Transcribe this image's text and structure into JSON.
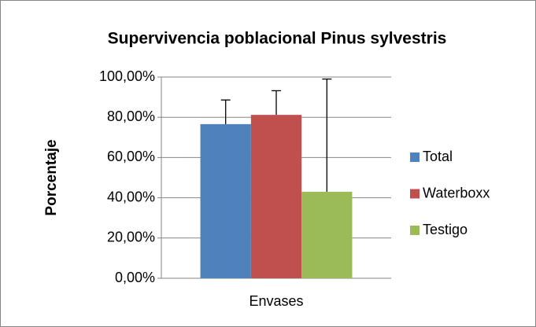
{
  "chart_data": {
    "type": "bar",
    "title": "Supervivencia poblacional Pinus sylvestris",
    "ylabel": "Porcentaje",
    "categories": [
      "Envases"
    ],
    "series": [
      {
        "name": "Total",
        "color": "#4f81bd",
        "values": [
          76.6
        ],
        "errors": [
          12
        ]
      },
      {
        "name": "Waterboxx",
        "color": "#c0504d",
        "values": [
          81.2
        ],
        "errors": [
          12
        ]
      },
      {
        "name": "Testigo",
        "color": "#9bbb59",
        "values": [
          43
        ],
        "errors": [
          56
        ]
      }
    ],
    "ylim": [
      0,
      100
    ],
    "yticks": [
      {
        "value": 0,
        "label": "0,00%"
      },
      {
        "value": 20,
        "label": "20,00%"
      },
      {
        "value": 40,
        "label": "40,00%"
      },
      {
        "value": 60,
        "label": "60,00%"
      },
      {
        "value": 80,
        "label": "80,00%"
      },
      {
        "value": 100,
        "label": "100,00%"
      }
    ],
    "grid": true,
    "legend": "right"
  }
}
